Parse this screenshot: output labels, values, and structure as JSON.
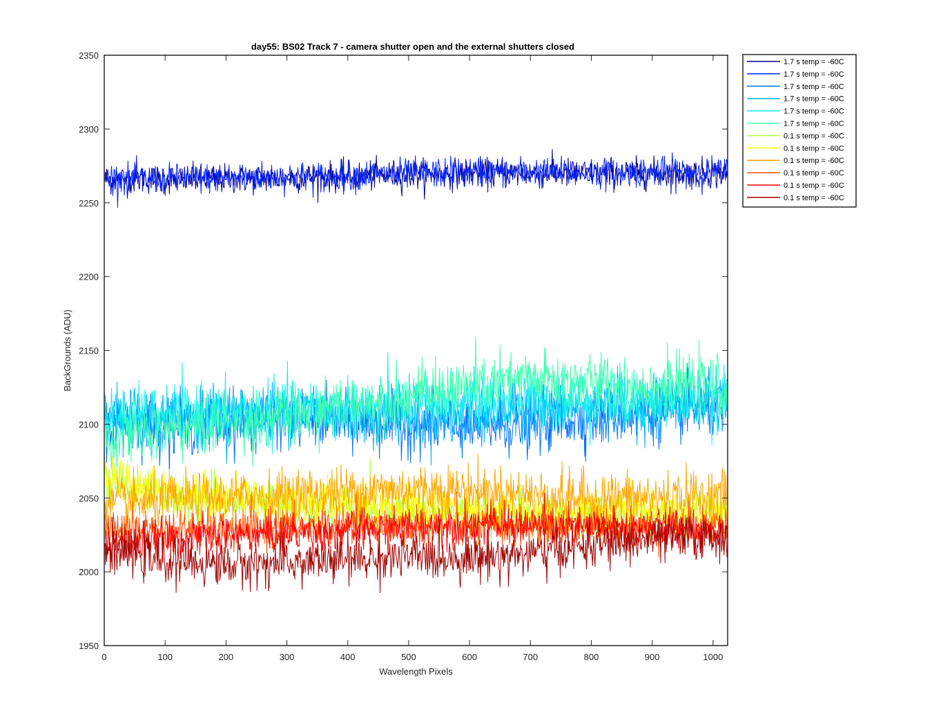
{
  "chart_data": {
    "type": "line",
    "title": "day55: BS02  Track 7 - camera shutter open and the external shutters closed",
    "xlabel": "Wavelength Pixels",
    "ylabel": "BackGrounds (ADU)",
    "xlim": [
      0,
      1024
    ],
    "ylim": [
      1950,
      2350
    ],
    "xticks": [
      0,
      100,
      200,
      300,
      400,
      500,
      600,
      700,
      800,
      900,
      1000
    ],
    "yticks": [
      1950,
      2000,
      2050,
      2100,
      2150,
      2200,
      2250,
      2300,
      2350
    ],
    "grid": false,
    "legend_position": "outside-top-right",
    "noise": "high-frequency per-pixel noise around each series trend",
    "x": [
      0,
      100,
      200,
      300,
      400,
      500,
      600,
      700,
      800,
      900,
      1024
    ],
    "series": [
      {
        "name": "1.7 s temp = -60C",
        "color": "#00008f",
        "noise_amplitude": 9,
        "values": [
          2266,
          2266,
          2266,
          2267,
          2268,
          2269,
          2270,
          2270,
          2270,
          2270,
          2270
        ]
      },
      {
        "name": "1.7 s temp = -60C",
        "color": "#0020ff",
        "noise_amplitude": 9,
        "values": [
          2267,
          2266,
          2267,
          2268,
          2268,
          2270,
          2271,
          2271,
          2270,
          2271,
          2271
        ]
      },
      {
        "name": "1.7 s temp = -60C",
        "color": "#0070ff",
        "noise_amplitude": 18,
        "values": [
          2100,
          2100,
          2102,
          2105,
          2102,
          2100,
          2098,
          2100,
          2105,
          2108,
          2112
        ]
      },
      {
        "name": "1.7 s temp = -60C",
        "color": "#00b0ff",
        "noise_amplitude": 18,
        "values": [
          2102,
          2105,
          2106,
          2108,
          2108,
          2106,
          2105,
          2110,
          2112,
          2114,
          2115
        ]
      },
      {
        "name": "1.7 s temp = -60C",
        "color": "#10f0f0",
        "noise_amplitude": 18,
        "values": [
          2104,
          2106,
          2108,
          2110,
          2112,
          2114,
          2115,
          2116,
          2116,
          2116,
          2116
        ]
      },
      {
        "name": "1.7 s temp = -60C",
        "color": "#40ffb0",
        "noise_amplitude": 18,
        "values": [
          2090,
          2096,
          2100,
          2105,
          2112,
          2118,
          2126,
          2130,
          2128,
          2126,
          2125
        ]
      },
      {
        "name": "0.1 s temp = -60C",
        "color": "#b0ff40",
        "noise_amplitude": 14,
        "values": [
          2060,
          2052,
          2048,
          2046,
          2044,
          2042,
          2040,
          2038,
          2038,
          2038,
          2040
        ]
      },
      {
        "name": "0.1 s temp = -60C",
        "color": "#ffff00",
        "noise_amplitude": 14,
        "values": [
          2062,
          2055,
          2050,
          2048,
          2046,
          2044,
          2042,
          2040,
          2040,
          2040,
          2042
        ]
      },
      {
        "name": "0.1 s temp = -60C",
        "color": "#ffa500",
        "noise_amplitude": 16,
        "values": [
          2045,
          2048,
          2050,
          2052,
          2054,
          2056,
          2055,
          2052,
          2050,
          2050,
          2052
        ]
      },
      {
        "name": "0.1 s temp = -60C",
        "color": "#ff5000",
        "noise_amplitude": 12,
        "values": [
          2030,
          2028,
          2028,
          2030,
          2030,
          2032,
          2030,
          2030,
          2030,
          2030,
          2032
        ]
      },
      {
        "name": "0.1 s temp = -60C",
        "color": "#ff0000",
        "noise_amplitude": 12,
        "values": [
          2018,
          2022,
          2025,
          2026,
          2028,
          2030,
          2032,
          2032,
          2030,
          2030,
          2030
        ]
      },
      {
        "name": "0.1 s temp = -60C",
        "color": "#a00000",
        "noise_amplitude": 14,
        "values": [
          2015,
          2008,
          2005,
          2006,
          2008,
          2010,
          2010,
          2012,
          2018,
          2022,
          2024
        ]
      }
    ]
  }
}
